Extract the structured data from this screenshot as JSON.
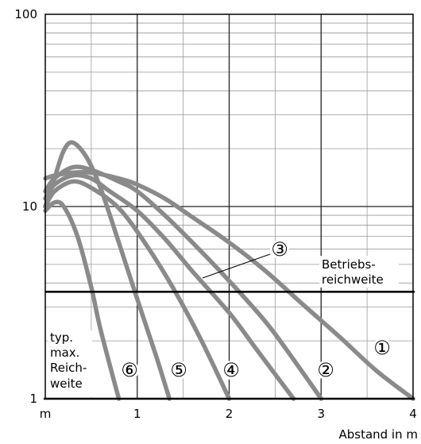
{
  "chart_data": {
    "type": "line",
    "title": "",
    "xlabel": "Abstand in m",
    "x_unit_label": "m",
    "ylabel": "",
    "xlim": [
      0,
      4
    ],
    "ylim": [
      1,
      100
    ],
    "y_scale": "log",
    "grid": true,
    "x_ticks": [
      {
        "value": 1,
        "label": "1"
      },
      {
        "value": 2,
        "label": "2"
      },
      {
        "value": 3,
        "label": "3"
      },
      {
        "value": 4,
        "label": "4"
      }
    ],
    "y_ticks": [
      {
        "value": 1,
        "label": "1"
      },
      {
        "value": 10,
        "label": "10"
      },
      {
        "value": 100,
        "label": "100"
      }
    ],
    "reference_line": {
      "value": 3.6,
      "label_line1": "Betriebs-",
      "label_line2": "reichweite"
    },
    "annotation": {
      "line1": "typ.",
      "line2": "max.",
      "line3": "Reich-",
      "line4": "weite"
    },
    "series": [
      {
        "label": "1",
        "x": [
          0,
          0.1,
          0.3,
          0.5,
          0.8,
          1.0,
          1.3,
          1.6,
          2.0,
          2.4,
          2.8,
          3.2,
          3.6,
          4.0
        ],
        "y": [
          14,
          14.5,
          15,
          15,
          14,
          13,
          11,
          8.8,
          6.5,
          4.6,
          3.1,
          2.1,
          1.4,
          1.0
        ]
      },
      {
        "label": "2",
        "x": [
          0,
          0.1,
          0.3,
          0.5,
          0.8,
          1.0,
          1.3,
          1.6,
          2.0,
          2.4,
          2.7,
          3.0
        ],
        "y": [
          12,
          14,
          16,
          15.5,
          13.5,
          12,
          9,
          6.5,
          4.1,
          2.5,
          1.6,
          1.0
        ]
      },
      {
        "label": "3",
        "x": [
          0,
          0.1,
          0.3,
          0.5,
          0.7,
          1.0,
          1.3,
          1.6,
          2.0,
          2.3,
          2.7
        ],
        "y": [
          11,
          13,
          14.5,
          14,
          12,
          9.5,
          6.8,
          4.6,
          2.8,
          1.8,
          1.0
        ]
      },
      {
        "label": "4",
        "x": [
          0,
          0.1,
          0.3,
          0.5,
          0.8,
          1.1,
          1.4,
          1.7,
          2.0
        ],
        "y": [
          10,
          12,
          13.5,
          12.5,
          9.8,
          6.3,
          3.7,
          2.0,
          1.0
        ]
      },
      {
        "label": "5",
        "x": [
          0,
          0.1,
          0.2,
          0.3,
          0.45,
          0.6,
          0.8,
          1.0,
          1.2,
          1.35
        ],
        "y": [
          10,
          14,
          19.5,
          21.5,
          18,
          12.5,
          6.5,
          3.3,
          1.7,
          1.0
        ]
      },
      {
        "label": "6",
        "x": [
          0,
          0.1,
          0.2,
          0.35,
          0.5,
          0.6,
          0.8
        ],
        "y": [
          9.5,
          10.5,
          10,
          7,
          3.8,
          2.3,
          1.0
        ]
      }
    ],
    "series_labels": [
      {
        "label": "1",
        "symbol": "①"
      },
      {
        "label": "2",
        "symbol": "②"
      },
      {
        "label": "3",
        "symbol": "③"
      },
      {
        "label": "4",
        "symbol": "④"
      },
      {
        "label": "5",
        "symbol": "⑤"
      },
      {
        "label": "6",
        "symbol": "⑥"
      }
    ],
    "colors": {
      "curve": "#8a8a8a",
      "grid": "#9a9a9a",
      "axis": "#000000"
    }
  }
}
